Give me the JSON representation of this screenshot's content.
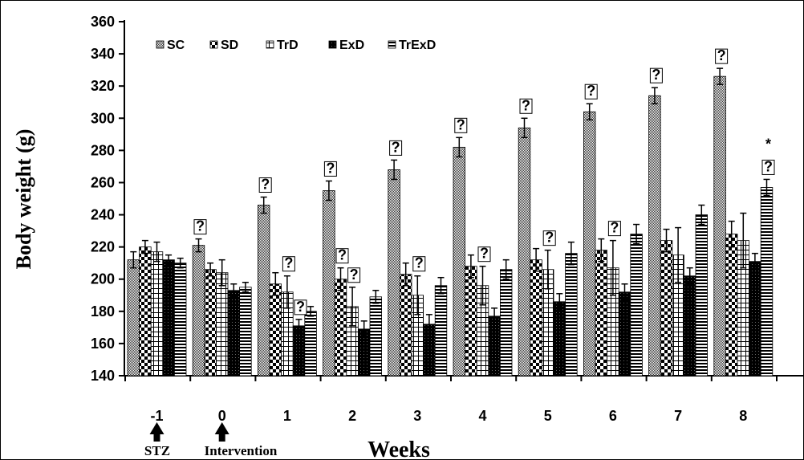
{
  "chart_data": {
    "type": "bar",
    "title": "",
    "xlabel": "Weeks",
    "ylabel": "Body weight (g)",
    "ylim": [
      140,
      360
    ],
    "yticks": [
      140,
      160,
      180,
      200,
      220,
      240,
      260,
      280,
      300,
      320,
      340,
      360
    ],
    "categories": [
      "-1",
      "0",
      "1",
      "2",
      "3",
      "4",
      "5",
      "6",
      "7",
      "8"
    ],
    "legend_position": "top-left",
    "grid": false,
    "series": [
      {
        "name": "SC",
        "pattern": "sc",
        "values": [
          212,
          221,
          246,
          255,
          268,
          282,
          294,
          304,
          314,
          326
        ],
        "errors": [
          5,
          4,
          5,
          6,
          6,
          6,
          6,
          5,
          5,
          5
        ]
      },
      {
        "name": "SD",
        "pattern": "sd",
        "values": [
          220,
          206,
          197,
          200,
          203,
          208,
          212,
          218,
          224,
          228
        ],
        "errors": [
          4,
          4,
          7,
          7,
          7,
          7,
          7,
          7,
          7,
          8
        ]
      },
      {
        "name": "TrD",
        "pattern": "trd",
        "values": [
          217,
          204,
          192,
          183,
          190,
          196,
          206,
          207,
          215,
          224
        ],
        "errors": [
          6,
          8,
          10,
          12,
          12,
          12,
          12,
          17,
          17,
          17
        ]
      },
      {
        "name": "ExD",
        "pattern": "exd",
        "values": [
          212,
          193,
          171,
          169,
          172,
          177,
          186,
          192,
          202,
          211
        ],
        "errors": [
          3,
          4,
          4,
          5,
          6,
          5,
          5,
          5,
          5,
          5
        ]
      },
      {
        "name": "TrExD",
        "pattern": "trexd",
        "values": [
          210,
          195,
          180,
          189,
          196,
          206,
          216,
          228,
          240,
          257
        ],
        "errors": [
          3,
          3,
          3,
          4,
          5,
          6,
          7,
          6,
          6,
          5
        ]
      }
    ],
    "annotations": [
      {
        "category": "0",
        "series": "SC",
        "text": "?"
      },
      {
        "category": "1",
        "series": "SC",
        "text": "?"
      },
      {
        "category": "1",
        "series": "TrD",
        "text": "?"
      },
      {
        "category": "1",
        "series": "ExD",
        "text": "?"
      },
      {
        "category": "2",
        "series": "SC",
        "text": "?"
      },
      {
        "category": "2",
        "series": "SD",
        "text": "?"
      },
      {
        "category": "2",
        "series": "TrD",
        "text": "?"
      },
      {
        "category": "3",
        "series": "SC",
        "text": "?"
      },
      {
        "category": "3",
        "series": "TrD",
        "text": "?"
      },
      {
        "category": "4",
        "series": "SC",
        "text": "?"
      },
      {
        "category": "4",
        "series": "TrD",
        "text": "?"
      },
      {
        "category": "5",
        "series": "SC",
        "text": "?"
      },
      {
        "category": "5",
        "series": "TrD",
        "text": "?"
      },
      {
        "category": "6",
        "series": "SC",
        "text": "?"
      },
      {
        "category": "6",
        "series": "TrD",
        "text": "?"
      },
      {
        "category": "7",
        "series": "SC",
        "text": "?"
      },
      {
        "category": "8",
        "series": "SC",
        "text": "?"
      },
      {
        "category": "8",
        "series": "TrExD",
        "text": "?"
      },
      {
        "category": "8",
        "series": "TrExD",
        "text": "*"
      }
    ],
    "markers": [
      {
        "category": "-1",
        "label": "STZ"
      },
      {
        "category": "0",
        "label": "Intervention"
      }
    ]
  }
}
